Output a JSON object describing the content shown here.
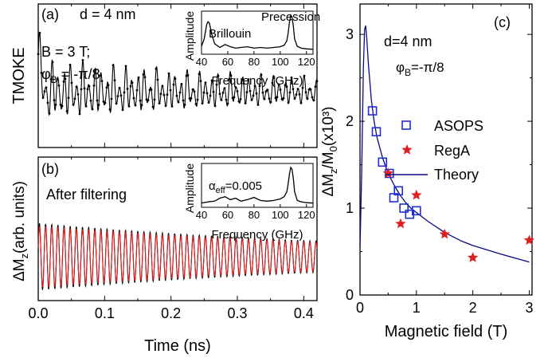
{
  "colors": {
    "measured": "#000000",
    "filtered_fit": "#e02020",
    "asops": "#1f2fd0",
    "rega": "#e02020",
    "theory": "#0a0a80"
  },
  "chart_data": [
    {
      "id": "a",
      "type": "line",
      "panel_label": "(a)",
      "ylabel": "TMOKE",
      "annotations": {
        "thickness": "d = 4 nm",
        "field": "B = 3 T;",
        "angle": "φB = -π/8"
      },
      "xlim": [
        0,
        0.42
      ],
      "signal": {
        "frequency_ghz": 108,
        "beat_ghz": 45,
        "decay_ns": 0.5,
        "amplitude": 1.0
      },
      "inset": {
        "type": "line",
        "xlabel": "Frequency (GHz)",
        "ylabel": "Amplitude",
        "xlim": [
          40,
          125
        ],
        "xticks": [
          40,
          60,
          80,
          100,
          120
        ],
        "peak_labels": [
          "Precession",
          "Brillouin"
        ],
        "x": [
          40,
          42,
          44,
          45,
          46,
          48,
          50,
          54,
          58,
          62,
          66,
          70,
          75,
          80,
          85,
          90,
          95,
          100,
          103,
          105,
          106,
          107,
          108,
          109,
          110,
          111,
          113,
          116,
          120,
          125
        ],
        "y": [
          0.15,
          0.35,
          0.75,
          0.82,
          0.78,
          0.45,
          0.22,
          0.12,
          0.2,
          0.14,
          0.1,
          0.12,
          0.14,
          0.1,
          0.12,
          0.1,
          0.12,
          0.14,
          0.18,
          0.3,
          0.5,
          0.8,
          1.0,
          0.95,
          0.7,
          0.35,
          0.15,
          0.1,
          0.08,
          0.07
        ]
      }
    },
    {
      "id": "b",
      "type": "line",
      "panel_label": "(b)",
      "ylabel": "ΔMz(arb. units)",
      "annotations": {
        "note": "After filtering"
      },
      "xlabel": "Time (ns)",
      "xlim": [
        0,
        0.42
      ],
      "xticks": [
        0.0,
        0.1,
        0.2,
        0.3,
        0.4
      ],
      "signal": {
        "frequency_ghz": 108,
        "decay_ns": 0.55,
        "amplitude": 1.0
      },
      "inset": {
        "type": "line",
        "xlabel": "Frequency (GHz)",
        "ylabel": "Amplitude",
        "label": "αeff=0.005",
        "xlim": [
          40,
          125
        ],
        "xticks": [
          40,
          60,
          80,
          100,
          120
        ],
        "x": [
          40,
          45,
          50,
          54,
          58,
          62,
          66,
          70,
          75,
          80,
          85,
          90,
          95,
          100,
          103,
          105,
          106,
          107,
          108,
          109,
          110,
          111,
          113,
          116,
          120,
          125
        ],
        "y": [
          0.05,
          0.08,
          0.1,
          0.18,
          0.22,
          0.14,
          0.18,
          0.1,
          0.14,
          0.2,
          0.12,
          0.1,
          0.12,
          0.16,
          0.22,
          0.35,
          0.55,
          0.82,
          1.0,
          0.95,
          0.7,
          0.35,
          0.12,
          0.08,
          0.06,
          0.05
        ]
      }
    },
    {
      "id": "c",
      "type": "scatter",
      "panel_label": "(c)",
      "xlabel": "Magnetic field (T)",
      "ylabel": "ΔMz/M0(x10³)",
      "annotations": {
        "thickness": "d=4 nm",
        "angle": "φB=-π/8"
      },
      "xlim": [
        0,
        3.05
      ],
      "ylim": [
        0,
        3.35
      ],
      "xticks": [
        0,
        1,
        2,
        3
      ],
      "yticks": [
        0,
        1,
        2,
        3
      ],
      "legend_position": "right",
      "series": [
        {
          "name": "ASOPS",
          "marker": "open-square",
          "x": [
            0.22,
            0.29,
            0.4,
            0.52,
            0.6,
            0.68,
            0.78,
            0.88,
            1.0
          ],
          "y": [
            2.12,
            1.88,
            1.53,
            1.4,
            1.12,
            1.2,
            1.0,
            0.93,
            0.97
          ]
        },
        {
          "name": "RegA",
          "marker": "star",
          "x": [
            0.5,
            0.72,
            1.0,
            1.5,
            2.0,
            3.0
          ],
          "y": [
            1.4,
            0.82,
            1.15,
            0.7,
            0.43,
            0.63
          ]
        },
        {
          "name": "Theory",
          "marker": "line",
          "x": [
            0.0,
            0.03,
            0.06,
            0.08,
            0.1,
            0.12,
            0.15,
            0.2,
            0.25,
            0.3,
            0.4,
            0.5,
            0.6,
            0.7,
            0.8,
            0.9,
            1.0,
            1.2,
            1.5,
            1.8,
            2.0,
            2.5,
            3.0
          ],
          "y": [
            0.55,
            1.4,
            2.6,
            3.05,
            3.1,
            2.95,
            2.65,
            2.25,
            2.0,
            1.82,
            1.58,
            1.4,
            1.27,
            1.16,
            1.07,
            1.0,
            0.95,
            0.85,
            0.72,
            0.62,
            0.57,
            0.47,
            0.38
          ]
        }
      ]
    }
  ]
}
